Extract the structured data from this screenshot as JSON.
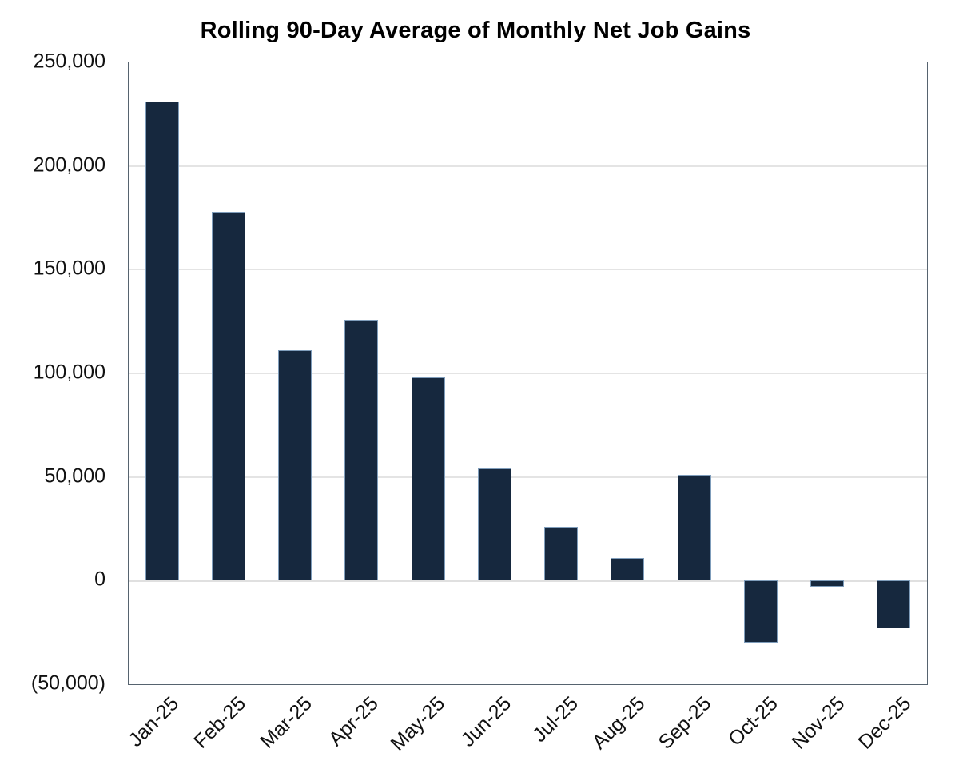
{
  "chart_data": {
    "type": "bar",
    "title": "Rolling 90-Day Average of Monthly Net Job Gains",
    "categories": [
      "Jan-25",
      "Feb-25",
      "Mar-25",
      "Apr-25",
      "May-25",
      "Jun-25",
      "Jul-25",
      "Aug-25",
      "Sep-25",
      "Oct-25",
      "Nov-25",
      "Dec-25"
    ],
    "values": [
      231000,
      178000,
      111000,
      126000,
      98000,
      54000,
      26000,
      11000,
      51000,
      -30000,
      -3000,
      -23000
    ],
    "xlabel": "",
    "ylabel": "",
    "ylim": [
      -50000,
      250000
    ],
    "ytick_interval": 50000,
    "ytick_labels": [
      "250,000",
      "200,000",
      "150,000",
      "100,000",
      "50,000",
      "0",
      "(50,000)"
    ],
    "grid": true,
    "legend_position": "none",
    "bar_color": "#16283e",
    "bar_border_color": "#7f9dbb",
    "gridline_color": "#e4e4e4",
    "axis_border_color": "#56636f"
  }
}
